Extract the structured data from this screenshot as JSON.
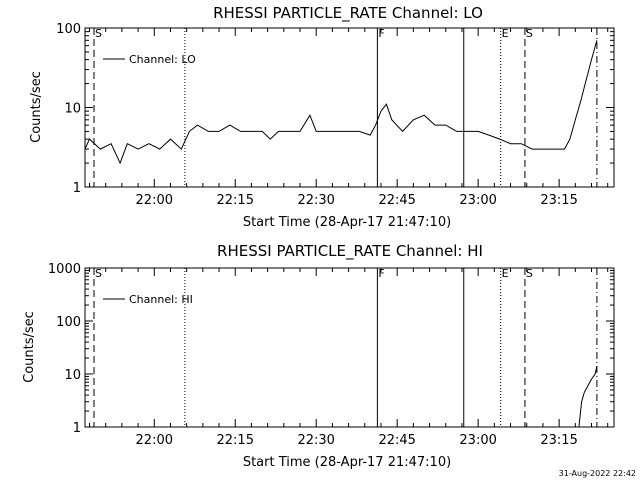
{
  "footer": {
    "timestamp": "31-Aug-2022 22:42"
  },
  "chart_data": [
    {
      "type": "line",
      "title": "RHESSI PARTICLE_RATE Channel: LO",
      "xlabel": "Start Time (28-Apr-17 21:47:10)",
      "ylabel": "Counts/sec",
      "yscale": "log",
      "ylim": [
        1,
        100
      ],
      "xlim": [
        "21:47:10",
        "23:25:10"
      ],
      "x_ticks": [
        "22:00",
        "22:15",
        "22:30",
        "22:45",
        "23:00",
        "23:15"
      ],
      "y_ticks": [
        "1",
        "10",
        "100"
      ],
      "legend": {
        "position": "top-left",
        "entries": [
          "Channel: LO"
        ]
      },
      "markers": [
        {
          "time": "21:48:50",
          "style": "dash",
          "label": "S"
        },
        {
          "time": "22:05:40",
          "style": "dot",
          "label": ""
        },
        {
          "time": "22:41:20",
          "style": "solid",
          "label": "F"
        },
        {
          "time": "22:57:20",
          "style": "solid",
          "label": ""
        },
        {
          "time": "23:04:10",
          "style": "dot",
          "label": "E"
        },
        {
          "time": "23:08:40",
          "style": "dash",
          "label": "S"
        },
        {
          "time": "23:22:00",
          "style": "dashdot",
          "label": ""
        }
      ],
      "series": [
        {
          "name": "Channel: LO",
          "x": [
            "21:47:10",
            "21:48:00",
            "21:50:00",
            "21:52:00",
            "21:53:40",
            "21:55:00",
            "21:57:00",
            "21:59:00",
            "22:01:00",
            "22:03:00",
            "22:05:00",
            "22:06:30",
            "22:08:00",
            "22:10:00",
            "22:12:00",
            "22:14:00",
            "22:16:00",
            "22:18:00",
            "22:20:00",
            "22:21:30",
            "22:23:00",
            "22:25:00",
            "22:27:00",
            "22:28:50",
            "22:30:00",
            "22:32:00",
            "22:34:00",
            "22:36:00",
            "22:38:00",
            "22:40:00",
            "22:41:00",
            "22:42:00",
            "22:43:00",
            "22:44:00",
            "22:46:00",
            "22:48:00",
            "22:50:00",
            "22:52:00",
            "22:54:00",
            "22:56:00",
            "22:58:00",
            "23:00:00",
            "23:02:00",
            "23:04:00",
            "23:06:00",
            "23:08:00",
            "23:10:00",
            "23:12:00",
            "23:14:00",
            "23:16:00",
            "23:17:00",
            "23:18:00",
            "23:19:00",
            "23:20:00",
            "23:21:00",
            "23:22:00"
          ],
          "y": [
            3,
            4,
            3,
            3.5,
            2,
            3.5,
            3,
            3.5,
            3,
            4,
            3,
            5,
            6,
            5,
            5,
            6,
            5,
            5,
            5,
            4,
            5,
            5,
            5,
            8,
            5,
            5,
            5,
            5,
            5,
            4.5,
            6,
            9,
            11,
            7,
            5,
            7,
            8,
            6,
            6,
            5,
            5,
            5,
            4.5,
            4,
            3.5,
            3.5,
            3,
            3,
            3,
            3,
            4,
            7,
            12,
            22,
            40,
            70
          ]
        }
      ]
    },
    {
      "type": "line",
      "title": "RHESSI PARTICLE_RATE Channel: HI",
      "xlabel": "Start Time (28-Apr-17 21:47:10)",
      "ylabel": "Counts/sec",
      "yscale": "log",
      "ylim": [
        1,
        1000
      ],
      "xlim": [
        "21:47:10",
        "23:25:10"
      ],
      "x_ticks": [
        "22:00",
        "22:15",
        "22:30",
        "22:45",
        "23:00",
        "23:15"
      ],
      "y_ticks": [
        "1",
        "10",
        "100",
        "1000"
      ],
      "legend": {
        "position": "top-left",
        "entries": [
          "Channel: HI"
        ]
      },
      "markers": [
        {
          "time": "21:48:50",
          "style": "dash",
          "label": "S"
        },
        {
          "time": "22:05:40",
          "style": "dot",
          "label": ""
        },
        {
          "time": "22:41:20",
          "style": "solid",
          "label": "F"
        },
        {
          "time": "22:57:20",
          "style": "solid",
          "label": ""
        },
        {
          "time": "23:04:10",
          "style": "dot",
          "label": "E"
        },
        {
          "time": "23:08:40",
          "style": "dash",
          "label": "S"
        },
        {
          "time": "23:22:00",
          "style": "dashdot",
          "label": ""
        }
      ],
      "series": [
        {
          "name": "Channel: HI",
          "x": [
            "23:18:40",
            "23:19:10",
            "23:19:40",
            "23:20:20",
            "23:21:00",
            "23:21:40",
            "23:22:00"
          ],
          "y": [
            1,
            3,
            4.5,
            6,
            8,
            10,
            14
          ]
        }
      ]
    }
  ]
}
